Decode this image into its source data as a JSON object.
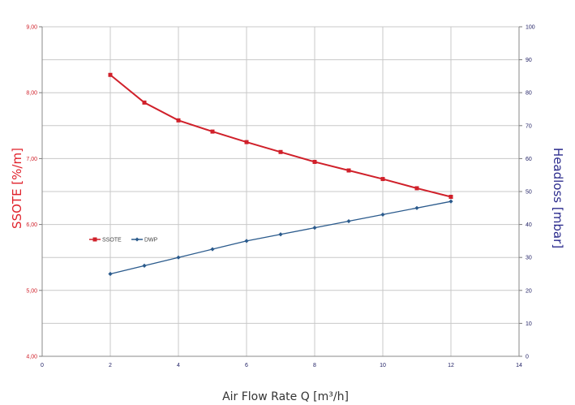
{
  "chart_data": {
    "type": "line",
    "title": "",
    "xlabel": "Air Flow Rate Q [m³/h]",
    "ylabel_left": "SSOTE [%/m]",
    "ylabel_right": "Headloss [mbar]",
    "xlim": [
      0,
      14
    ],
    "ylim_left": [
      4,
      9
    ],
    "ylim_right": [
      0,
      100
    ],
    "x_ticks": [
      "0",
      "2",
      "4",
      "6",
      "8",
      "10",
      "12",
      "14"
    ],
    "y_left_ticks": [
      "4,00",
      "5,00",
      "6,00",
      "7,00",
      "8,00",
      "9,00"
    ],
    "y_right_ticks": [
      "0",
      "10",
      "20",
      "30",
      "40",
      "50",
      "60",
      "70",
      "80",
      "90",
      "100"
    ],
    "grid": true,
    "legend_position": "center-left",
    "series": [
      {
        "name": "SSOTE",
        "axis": "left",
        "color": "#d0202a",
        "marker": "square",
        "x": [
          2,
          3,
          4,
          5,
          6,
          7,
          8,
          9,
          10,
          11,
          12
        ],
        "values": [
          8.27,
          7.85,
          7.58,
          7.41,
          7.25,
          7.1,
          6.95,
          6.82,
          6.69,
          6.55,
          6.42
        ]
      },
      {
        "name": "DWP",
        "axis": "right",
        "color": "#2a5a8c",
        "marker": "diamond",
        "x": [
          2,
          3,
          4,
          5,
          6,
          7,
          8,
          9,
          10,
          11,
          12
        ],
        "values": [
          25,
          27.5,
          30,
          32.5,
          35,
          37,
          39,
          41,
          43,
          45,
          47
        ]
      }
    ]
  }
}
